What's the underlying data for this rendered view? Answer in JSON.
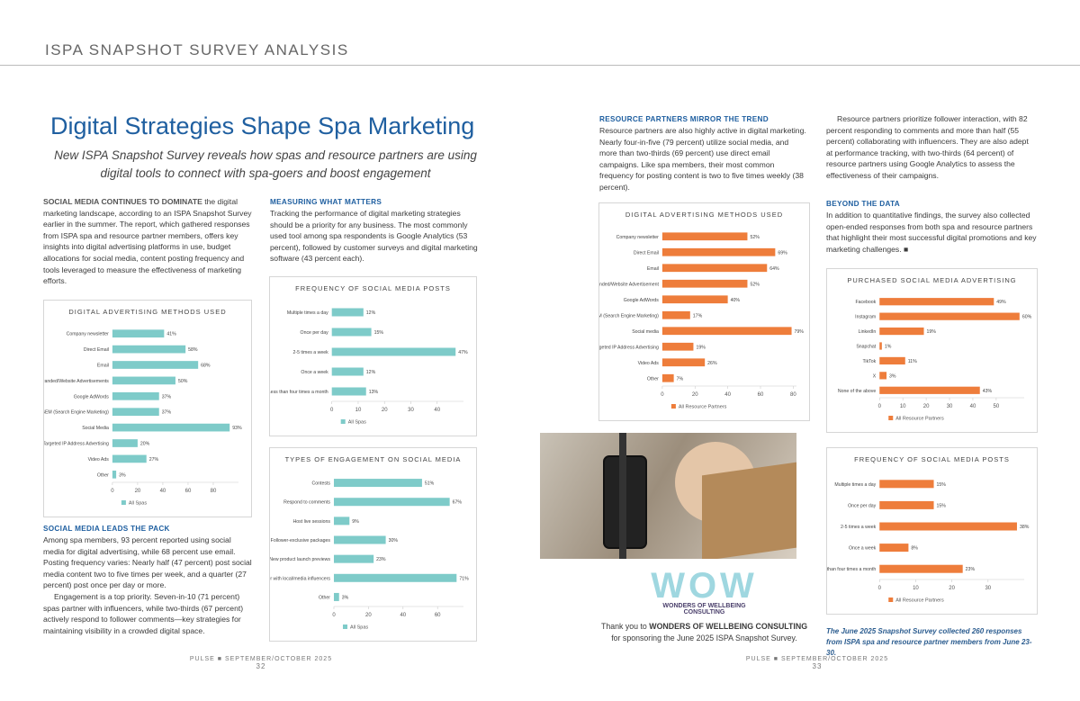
{
  "header": {
    "title": "ISPA SNAPSHOT SURVEY ANALYSIS"
  },
  "article": {
    "title": "Digital Strategies Shape Spa Marketing",
    "subtitle": "New ISPA Snapshot Survey reveals how spas and resource partners are using digital tools to connect with spa-goers and boost engagement"
  },
  "intro": {
    "lead": "SOCIAL MEDIA CONTINUES TO DOMINATE",
    "text": " the digital marketing landscape, according to an ISPA Snapshot Survey earlier in the summer. The report, which gathered responses from ISPA spa and resource partner members, offers key insights into digital advertising platforms in use, budget allocations for social media, content posting frequency and tools leveraged to measure the effectiveness of marketing efforts."
  },
  "sections": [
    {
      "heading": "SOCIAL MEDIA LEADS THE PACK",
      "paragraphs": [
        "Among spa members, 93 percent reported using social media for digital advertising, while 68 percent use email. Posting frequency varies: Nearly half (47 percent) post social media content two to five times per week, and a quarter (27 percent) post once per day or more.",
        "Engagement is a top priority. Seven-in-10 (71 percent) spas partner with influencers, while two-thirds (67 percent) actively respond to follower comments—key strategies for maintaining visibility in a crowded digital space."
      ]
    },
    {
      "heading": "MEASURING WHAT MATTERS",
      "paragraphs": [
        "Tracking the performance of digital marketing strategies should be a priority for any business. The most commonly used tool among spa respondents is Google Analytics (53 percent), followed by customer surveys and digital marketing software (43 percent each)."
      ]
    },
    {
      "heading": "RESOURCE PARTNERS MIRROR THE TREND",
      "paragraphs": [
        "Resource partners are also highly active in digital marketing. Nearly four-in-five (79 percent) utilize social media, and more than two-thirds (69 percent) use direct email campaigns. Like spa members, their most common frequency for posting content is two to five times weekly (38 percent)."
      ]
    },
    {
      "paragraphs": [
        "Resource partners prioritize follower interaction, with 82 percent responding to comments and more than half (55 percent) collaborating with influencers. They are also adept at performance tracking, with two-thirds (64 percent) of resource partners using Google Analytics to assess the effectiveness of their campaigns."
      ]
    },
    {
      "heading": "BEYOND THE DATA",
      "paragraphs": [
        "In addition to quantitative findings, the survey also collected open-ended responses from both spa and resource partners that highlight their most successful digital promotions and key marketing challenges. ■"
      ]
    }
  ],
  "sponsor": {
    "logo": "WOW",
    "logo_line1": "WONDERS OF WELLBEING",
    "logo_line2": "CONSULTING",
    "before": "Thank you to ",
    "name": "WONDERS OF WELLBEING CONSULTING",
    "after": " for sponsoring the June 2025 ISPA Snapshot Survey."
  },
  "note": "The June 2025 Snapshot Survey collected 260 responses from ISPA spa and resource partner members from June 23-30.",
  "footer": {
    "left": "PULSE ■ SEPTEMBER/OCTOBER 2025",
    "left_page": "32",
    "right": "PULSE ■ SEPTEMBER/OCTOBER 2025",
    "right_page": "33"
  },
  "chart_data": [
    {
      "type": "bar",
      "title": "DIGITAL ADVERTISING METHODS USED",
      "categories": [
        "Company newsletter",
        "Direct Email",
        "Email",
        "Branded/Website Advertisements",
        "Google AdWords",
        "SEM (Search Engine Marketing)",
        "Social Media",
        "Targeted IP Address Advertising",
        "Video Ads",
        "Other"
      ],
      "series": [
        {
          "name": "All Spas",
          "color": "#7ecbc9",
          "values": [
            41,
            58,
            68,
            50,
            37,
            37,
            93,
            20,
            27,
            3
          ],
          "value_labels": [
            "41%",
            "58%",
            "68%",
            "50%",
            "37%",
            "37%",
            "93%",
            "20%",
            "27%",
            "3%"
          ]
        }
      ],
      "xlim": [
        0,
        100
      ],
      "xticks": [
        0,
        20,
        40,
        60,
        80
      ]
    },
    {
      "type": "bar",
      "title": "FREQUENCY OF SOCIAL MEDIA POSTS",
      "categories": [
        "Multiple times a day",
        "Once per day",
        "2-5 times a week",
        "Once a week",
        "Less than four times a month"
      ],
      "series": [
        {
          "name": "All Spas",
          "color": "#7ecbc9",
          "values": [
            12,
            15,
            47,
            12,
            13
          ],
          "value_labels": [
            "12%",
            "15%",
            "47%",
            "12%",
            "13%"
          ]
        }
      ],
      "xlim": [
        0,
        50
      ],
      "xticks": [
        0,
        10,
        20,
        30,
        40
      ]
    },
    {
      "type": "bar",
      "title": "TYPES OF ENGAGEMENT ON SOCIAL MEDIA",
      "categories": [
        "Contests",
        "Respond to comments",
        "Host live sessions",
        "Follower-exclusive packages",
        "New product launch previews",
        "Partner with local/media influencers",
        "Other"
      ],
      "series": [
        {
          "name": "All Spas",
          "color": "#7ecbc9",
          "values": [
            51,
            67,
            9,
            30,
            23,
            71,
            3
          ],
          "value_labels": [
            "51%",
            "67%",
            "9%",
            "30%",
            "23%",
            "71%",
            "3%"
          ]
        }
      ],
      "xlim": [
        0,
        75
      ],
      "xticks": [
        0,
        20,
        40,
        60
      ]
    },
    {
      "type": "bar",
      "title": "DIGITAL ADVERTISING METHODS USED",
      "categories": [
        "Company newsletter",
        "Direct Email",
        "Email",
        "Branded/Website Advertisement",
        "Google AdWords",
        "SEM (Search Engine Marketing)",
        "Social media",
        "Targeted IP Address Advertising",
        "Video Ads",
        "Other"
      ],
      "series": [
        {
          "name": "All Resource Partners",
          "color": "#ee7d3b",
          "values": [
            52,
            69,
            64,
            52,
            40,
            17,
            79,
            19,
            26,
            7
          ],
          "value_labels": [
            "52%",
            "69%",
            "64%",
            "52%",
            "40%",
            "17%",
            "79%",
            "19%",
            "26%",
            "7%"
          ]
        }
      ],
      "xlim": [
        0,
        82
      ],
      "xticks": [
        0,
        20,
        40,
        60,
        80
      ]
    },
    {
      "type": "bar",
      "title": "PURCHASED SOCIAL MEDIA ADVERTISING",
      "categories": [
        "Facebook",
        "Instagram",
        "LinkedIn",
        "Snapchat",
        "TikTok",
        "X",
        "None of the above"
      ],
      "series": [
        {
          "name": "All Resource Partners",
          "color": "#ee7d3b",
          "values": [
            49,
            60,
            19,
            1,
            11,
            3,
            43
          ],
          "value_labels": [
            "49%",
            "60%",
            "19%",
            "1%",
            "11%",
            "3%",
            "43%"
          ]
        }
      ],
      "xlim": [
        0,
        62
      ],
      "xticks": [
        0,
        10,
        20,
        30,
        40,
        50
      ]
    },
    {
      "type": "bar",
      "title": "FREQUENCY OF SOCIAL MEDIA POSTS",
      "categories": [
        "Multiple times a day",
        "Once per day",
        "2-5 times a week",
        "Once a week",
        "Less than four times a month"
      ],
      "series": [
        {
          "name": "All Resource Partners",
          "color": "#ee7d3b",
          "values": [
            15,
            15,
            38,
            8,
            23
          ],
          "value_labels": [
            "15%",
            "15%",
            "38%",
            "8%",
            "23%"
          ]
        }
      ],
      "xlim": [
        0,
        40
      ],
      "xticks": [
        0,
        10,
        20,
        30
      ]
    }
  ]
}
